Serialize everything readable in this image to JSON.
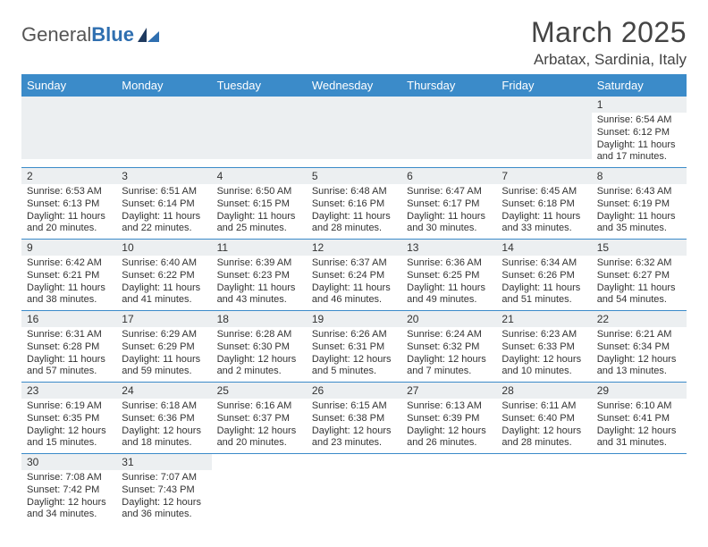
{
  "brand": {
    "name_a": "General",
    "name_b": "Blue",
    "logo_colors": {
      "dark": "#1f3a5f",
      "light": "#2f6fb0"
    }
  },
  "title": {
    "month": "March 2025",
    "location": "Arbatax, Sardinia, Italy"
  },
  "theme": {
    "header_bg": "#3b8bc9",
    "header_fg": "#ffffff",
    "daynum_bg": "#eceff1",
    "rule": "#3b8bc9",
    "text": "#333333"
  },
  "weekdays": [
    "Sunday",
    "Monday",
    "Tuesday",
    "Wednesday",
    "Thursday",
    "Friday",
    "Saturday"
  ],
  "firstWeekday": 6,
  "daysInMonth": 31,
  "days": {
    "1": {
      "sr": "6:54 AM",
      "ss": "6:12 PM",
      "dl": "11 hours and 17 minutes."
    },
    "2": {
      "sr": "6:53 AM",
      "ss": "6:13 PM",
      "dl": "11 hours and 20 minutes."
    },
    "3": {
      "sr": "6:51 AM",
      "ss": "6:14 PM",
      "dl": "11 hours and 22 minutes."
    },
    "4": {
      "sr": "6:50 AM",
      "ss": "6:15 PM",
      "dl": "11 hours and 25 minutes."
    },
    "5": {
      "sr": "6:48 AM",
      "ss": "6:16 PM",
      "dl": "11 hours and 28 minutes."
    },
    "6": {
      "sr": "6:47 AM",
      "ss": "6:17 PM",
      "dl": "11 hours and 30 minutes."
    },
    "7": {
      "sr": "6:45 AM",
      "ss": "6:18 PM",
      "dl": "11 hours and 33 minutes."
    },
    "8": {
      "sr": "6:43 AM",
      "ss": "6:19 PM",
      "dl": "11 hours and 35 minutes."
    },
    "9": {
      "sr": "6:42 AM",
      "ss": "6:21 PM",
      "dl": "11 hours and 38 minutes."
    },
    "10": {
      "sr": "6:40 AM",
      "ss": "6:22 PM",
      "dl": "11 hours and 41 minutes."
    },
    "11": {
      "sr": "6:39 AM",
      "ss": "6:23 PM",
      "dl": "11 hours and 43 minutes."
    },
    "12": {
      "sr": "6:37 AM",
      "ss": "6:24 PM",
      "dl": "11 hours and 46 minutes."
    },
    "13": {
      "sr": "6:36 AM",
      "ss": "6:25 PM",
      "dl": "11 hours and 49 minutes."
    },
    "14": {
      "sr": "6:34 AM",
      "ss": "6:26 PM",
      "dl": "11 hours and 51 minutes."
    },
    "15": {
      "sr": "6:32 AM",
      "ss": "6:27 PM",
      "dl": "11 hours and 54 minutes."
    },
    "16": {
      "sr": "6:31 AM",
      "ss": "6:28 PM",
      "dl": "11 hours and 57 minutes."
    },
    "17": {
      "sr": "6:29 AM",
      "ss": "6:29 PM",
      "dl": "11 hours and 59 minutes."
    },
    "18": {
      "sr": "6:28 AM",
      "ss": "6:30 PM",
      "dl": "12 hours and 2 minutes."
    },
    "19": {
      "sr": "6:26 AM",
      "ss": "6:31 PM",
      "dl": "12 hours and 5 minutes."
    },
    "20": {
      "sr": "6:24 AM",
      "ss": "6:32 PM",
      "dl": "12 hours and 7 minutes."
    },
    "21": {
      "sr": "6:23 AM",
      "ss": "6:33 PM",
      "dl": "12 hours and 10 minutes."
    },
    "22": {
      "sr": "6:21 AM",
      "ss": "6:34 PM",
      "dl": "12 hours and 13 minutes."
    },
    "23": {
      "sr": "6:19 AM",
      "ss": "6:35 PM",
      "dl": "12 hours and 15 minutes."
    },
    "24": {
      "sr": "6:18 AM",
      "ss": "6:36 PM",
      "dl": "12 hours and 18 minutes."
    },
    "25": {
      "sr": "6:16 AM",
      "ss": "6:37 PM",
      "dl": "12 hours and 20 minutes."
    },
    "26": {
      "sr": "6:15 AM",
      "ss": "6:38 PM",
      "dl": "12 hours and 23 minutes."
    },
    "27": {
      "sr": "6:13 AM",
      "ss": "6:39 PM",
      "dl": "12 hours and 26 minutes."
    },
    "28": {
      "sr": "6:11 AM",
      "ss": "6:40 PM",
      "dl": "12 hours and 28 minutes."
    },
    "29": {
      "sr": "6:10 AM",
      "ss": "6:41 PM",
      "dl": "12 hours and 31 minutes."
    },
    "30": {
      "sr": "7:08 AM",
      "ss": "7:42 PM",
      "dl": "12 hours and 34 minutes."
    },
    "31": {
      "sr": "7:07 AM",
      "ss": "7:43 PM",
      "dl": "12 hours and 36 minutes."
    }
  },
  "labels": {
    "sunrise": "Sunrise:",
    "sunset": "Sunset:",
    "daylight": "Daylight:"
  }
}
